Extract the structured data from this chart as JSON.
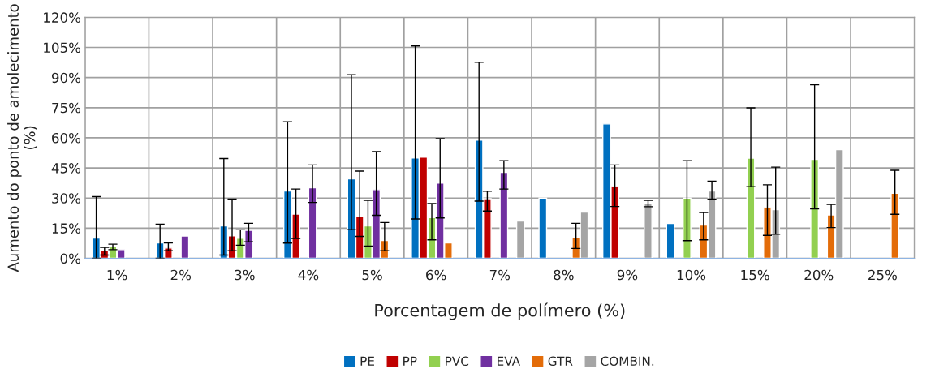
{
  "chart_data": {
    "type": "bar",
    "xlabel": "Porcentagem de polímero (%)",
    "ylabel": "Aumento do ponto de amolecimento (%)",
    "categories": [
      "1%",
      "2%",
      "3%",
      "4%",
      "5%",
      "6%",
      "7%",
      "8%",
      "9%",
      "10%",
      "15%",
      "20%",
      "25%"
    ],
    "ylim": [
      0,
      120
    ],
    "yticks": [
      {
        "value": 0,
        "label": "0%"
      },
      {
        "value": 15,
        "label": "15%"
      },
      {
        "value": 30,
        "label": "30%"
      },
      {
        "value": 45,
        "label": "45%"
      },
      {
        "value": 60,
        "label": "60%"
      },
      {
        "value": 75,
        "label": "75%"
      },
      {
        "value": 90,
        "label": "90%"
      },
      {
        "value": 105,
        "label": "105%"
      },
      {
        "value": 120,
        "label": "120%"
      }
    ],
    "grid": true,
    "legend": "bottom",
    "series": [
      {
        "name": "PE",
        "color": "#0070c0",
        "values": [
          10.1,
          7.7,
          16.1,
          33.5,
          39.6,
          50,
          58.8,
          30,
          66.9,
          17.3,
          null,
          null,
          null
        ],
        "errors": [
          [
            0,
            30.7
          ],
          [
            0,
            17
          ],
          [
            1.6,
            49.7
          ],
          [
            7.6,
            68
          ],
          [
            14.3,
            91.4
          ],
          [
            19.6,
            105.7
          ],
          [
            28.5,
            97.6
          ],
          null,
          null,
          null,
          null,
          null,
          null
        ]
      },
      {
        "name": "PP",
        "color": "#c00000",
        "values": [
          4.1,
          5.1,
          11.2,
          22,
          20.9,
          50.4,
          29.7,
          null,
          35.8,
          null,
          null,
          null,
          null
        ],
        "errors": [
          [
            1.6,
            5.4
          ],
          [
            3.8,
            7.7
          ],
          [
            3.8,
            29.5
          ],
          [
            9.9,
            34.5
          ],
          [
            10.9,
            43.4
          ],
          null,
          [
            23.5,
            33.4
          ],
          null,
          [
            25.8,
            46.5
          ],
          null,
          null,
          null,
          null
        ]
      },
      {
        "name": "PVC",
        "color": "#92d050",
        "values": [
          5.8,
          null,
          10,
          null,
          16.1,
          20.3,
          null,
          null,
          null,
          30,
          49.9,
          49.3,
          null
        ],
        "errors": [
          [
            4.3,
            7
          ],
          null,
          [
            6.5,
            14.2
          ],
          null,
          [
            6.1,
            28.9
          ],
          [
            9.2,
            27.3
          ],
          null,
          null,
          null,
          [
            8.8,
            48.6
          ],
          [
            35.7,
            74.9
          ],
          [
            24.6,
            86.4
          ],
          null
        ]
      },
      {
        "name": "EVA",
        "color": "#7030a0",
        "values": [
          4.3,
          11.1,
          13.9,
          35.1,
          34.2,
          37.4,
          42.8,
          null,
          null,
          null,
          null,
          null,
          null
        ],
        "errors": [
          null,
          null,
          [
            8.2,
            17.4
          ],
          [
            27.8,
            46.5
          ],
          [
            21.4,
            53.1
          ],
          [
            20.1,
            59.6
          ],
          [
            34.5,
            48.6
          ],
          null,
          null,
          null,
          null,
          null,
          null
        ]
      },
      {
        "name": "GTR",
        "color": "#e36c09",
        "values": [
          null,
          null,
          null,
          null,
          8.9,
          7.7,
          null,
          10.5,
          null,
          16.5,
          25.3,
          21.6,
          32.4
        ],
        "errors": [
          null,
          null,
          null,
          null,
          [
            3.8,
            17.8
          ],
          null,
          null,
          [
            4.9,
            17.4
          ],
          null,
          [
            9.2,
            22.8
          ],
          [
            11.4,
            36.6
          ],
          [
            15.3,
            26.8
          ],
          [
            21.9,
            43.8
          ]
        ]
      },
      {
        "name": "COMBIN.",
        "color": "#a5a5a5",
        "values": [
          null,
          null,
          null,
          null,
          null,
          null,
          18.6,
          23,
          27.3,
          33.5,
          24.2,
          54.1,
          null
        ],
        "errors": [
          null,
          null,
          null,
          null,
          null,
          null,
          null,
          null,
          [
            25.7,
            28.9
          ],
          [
            29.5,
            38.4
          ],
          [
            12,
            45.4
          ],
          null,
          null
        ]
      }
    ]
  }
}
